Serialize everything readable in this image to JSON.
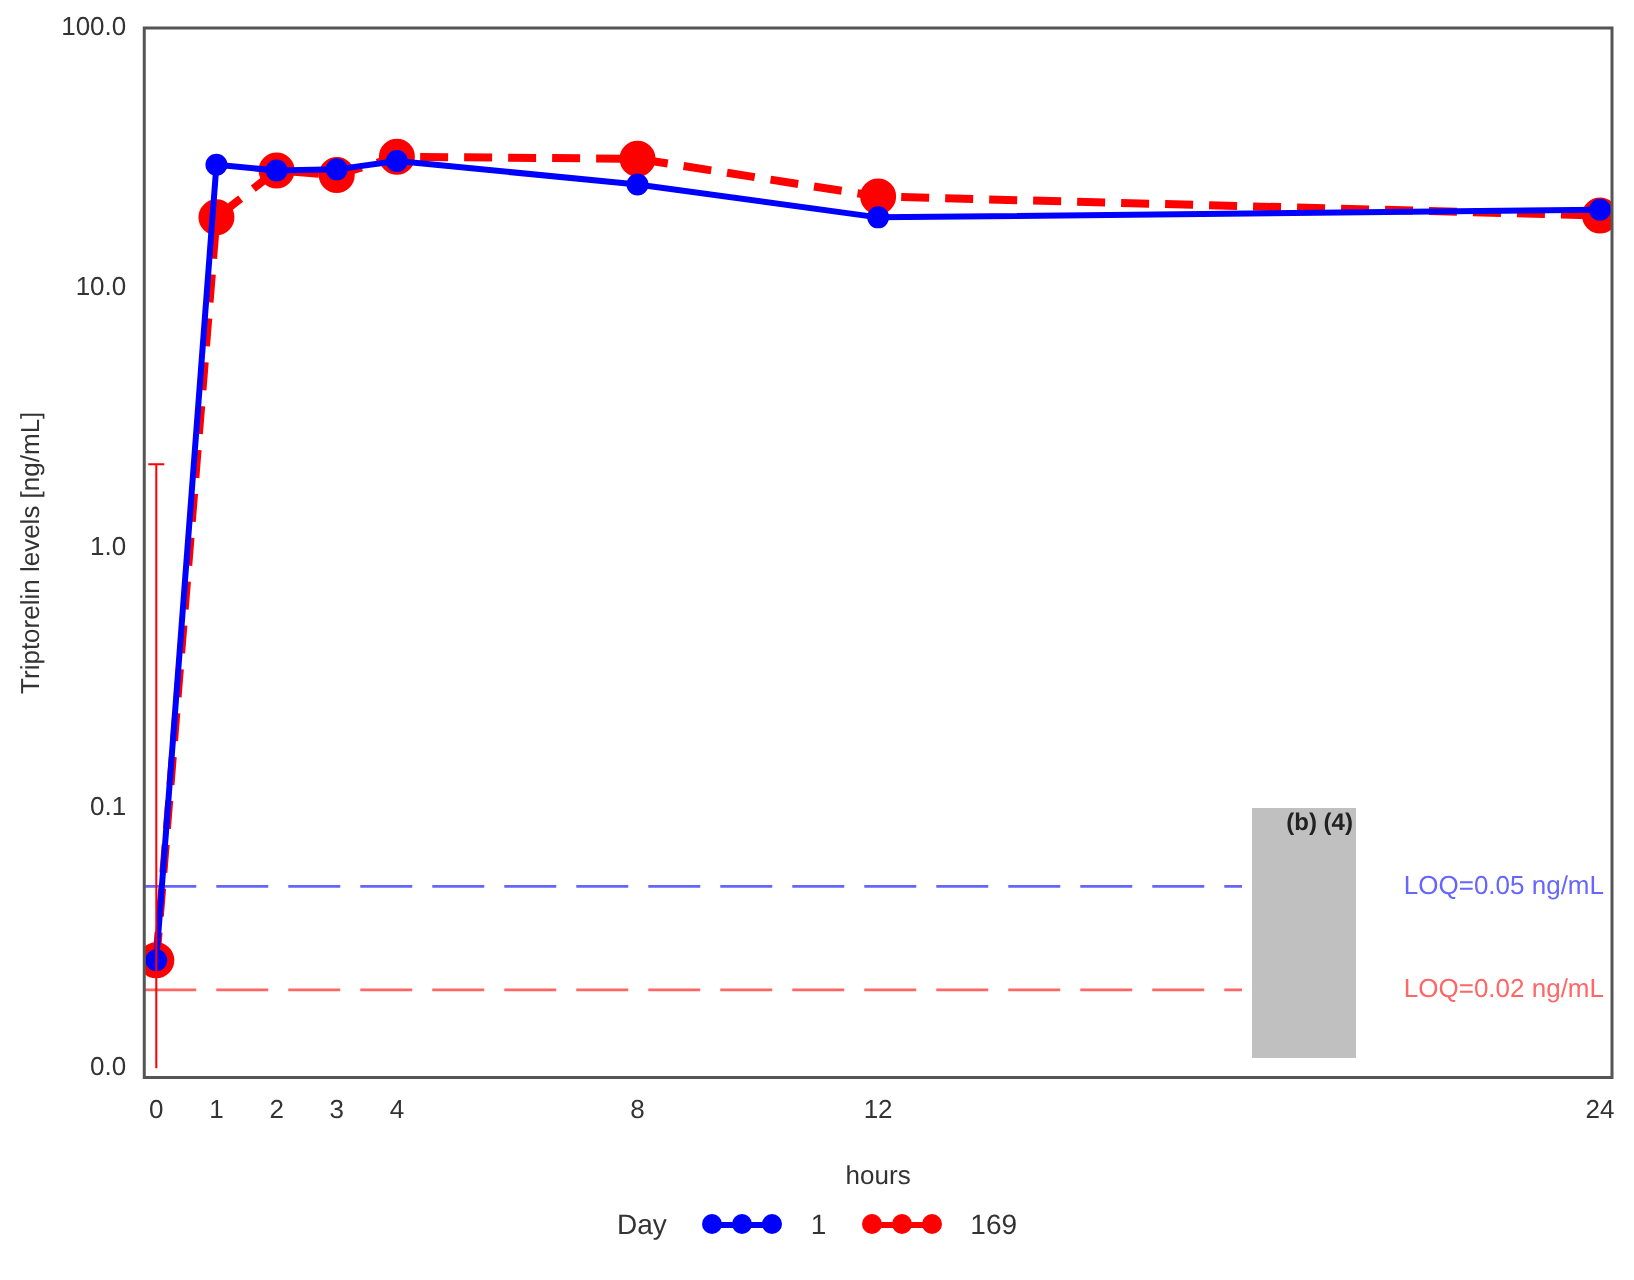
{
  "chart_data": {
    "type": "line",
    "xlabel": "hours",
    "ylabel": "Triptorelin levels [ng/mL]",
    "legend_title": "Day",
    "legend": "bottom",
    "log": "y",
    "grid": false,
    "marker": "circle",
    "x": [
      0,
      1,
      2,
      3,
      4,
      8,
      12,
      24
    ],
    "xlim": [
      -0.2,
      24.2
    ],
    "xticks": [
      0,
      1,
      2,
      3,
      4,
      8,
      12,
      24
    ],
    "ylim": [
      0.0092,
      100
    ],
    "yticks": [
      {
        "value": 0.01,
        "label": "0.0"
      },
      {
        "value": 0.1,
        "label": "0.1"
      },
      {
        "value": 1,
        "label": "1.0"
      },
      {
        "value": 10,
        "label": "10.0"
      },
      {
        "value": 100,
        "label": "100.0"
      }
    ],
    "series": [
      {
        "name": "1",
        "color": "#0000ff",
        "line_style": "solid",
        "values": [
          0.026,
          29.8,
          28.3,
          28.6,
          30.8,
          25.0,
          18.7,
          20.0
        ]
      },
      {
        "name": "169",
        "color": "#ff0000",
        "line_style": "dashed",
        "values": [
          0.026,
          18.7,
          28.3,
          27.2,
          32.0,
          31.4,
          22.5,
          19.0
        ],
        "errors": [
          [
            0.01,
            2.1
          ],
          null,
          null,
          null,
          null,
          null,
          null,
          null
        ]
      }
    ],
    "ref_lines": [
      {
        "axis": "y",
        "value": 0.05,
        "label": "LOQ=0.05 ng/mL",
        "color": "#6666ff",
        "line_style": "dashed"
      },
      {
        "axis": "y",
        "value": 0.02,
        "label": "LOQ=0.02 ng/mL",
        "color": "#ff6666",
        "line_style": "dashed"
      }
    ],
    "annotations": [
      "(b) (4)"
    ]
  }
}
